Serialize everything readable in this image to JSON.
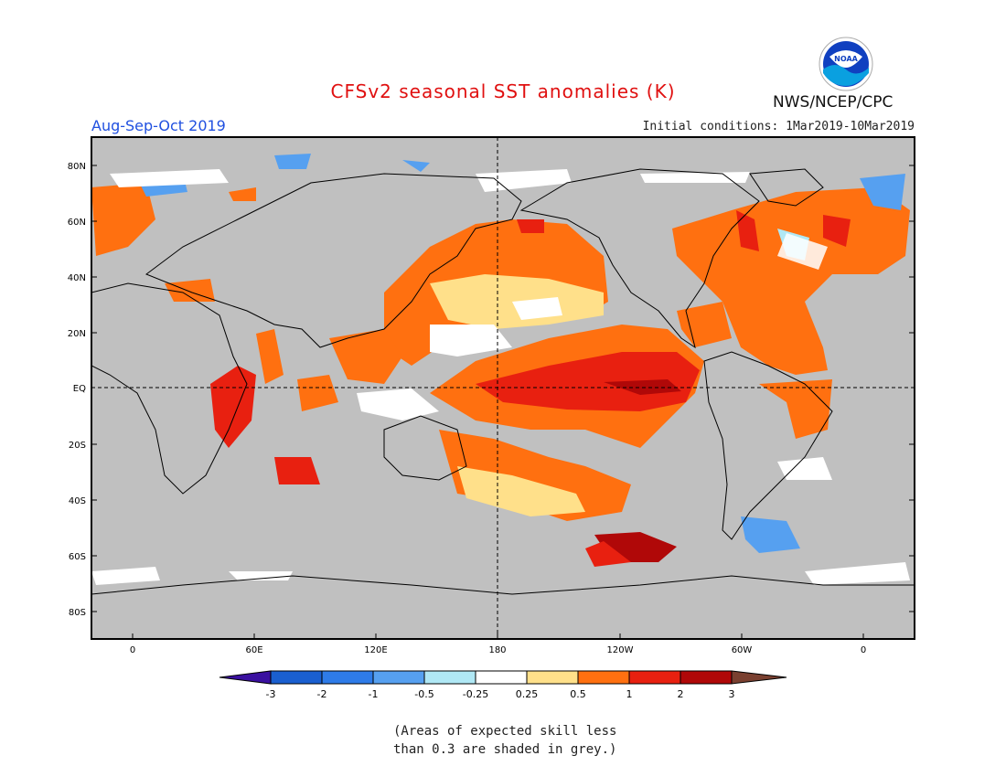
{
  "title": "CFSv2 seasonal SST anomalies (K)",
  "season": "Aug-Sep-Oct 2019",
  "initial_conditions": "Initial conditions: 1Mar2019-10Mar2019",
  "agency": "NWS/NCEP/CPC",
  "logo_text": "NOAA",
  "map": {
    "lat_labels": [
      "80N",
      "60N",
      "40N",
      "20N",
      "EQ",
      "20S",
      "40S",
      "60S",
      "80S"
    ],
    "lon_labels": [
      "0",
      "60E",
      "120E",
      "180",
      "120W",
      "60W",
      "0"
    ],
    "masked_color": "#c0c0c0"
  },
  "colorbar": {
    "levels": [
      "-3",
      "-2",
      "-1",
      "-0.5",
      "-0.25",
      "0.25",
      "0.5",
      "1",
      "2",
      "3"
    ],
    "colors": [
      "#3a10a0",
      "#1a5fd0",
      "#2e7be8",
      "#56a0f0",
      "#b0e8f5",
      "#ffffff",
      "#ffe08a",
      "#ff7010",
      "#e82010",
      "#b00808",
      "#7a4030"
    ]
  },
  "note_lines": [
    "(Areas of expected skill less",
    "than 0.3 are shaded in grey.)"
  ]
}
